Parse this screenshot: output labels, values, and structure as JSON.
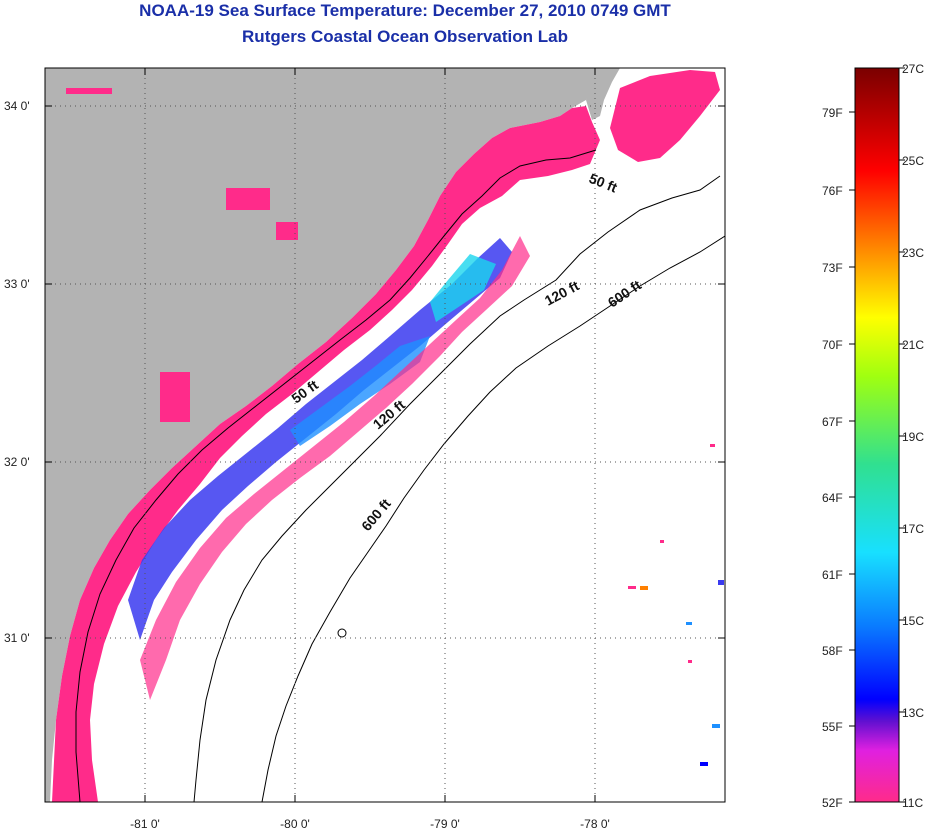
{
  "title": "NOAA-19 Sea Surface Temperature:  December 27, 2010 0749 GMT",
  "subtitle": "Rutgers Coastal Ocean Observation Lab",
  "map": {
    "latitude_labels": [
      "34 0'",
      "33 0'",
      "32 0'",
      "31 0'"
    ],
    "longitude_labels": [
      "-81 0'",
      "-80 0'",
      "-79 0'",
      "-78 0'"
    ],
    "contour_labels": {
      "c50_north": "50 ft",
      "c50_south": "50 ft",
      "c120_north": "120 ft",
      "c120_south": "120 ft",
      "c600_north": "600 ft",
      "c600_south": "600 ft"
    },
    "colors": {
      "land": "#b3b3b3",
      "ocean_nodata": "#ffffff",
      "sst_coldest": "#ff2b8a",
      "grid": "#555555"
    }
  },
  "colorbar": {
    "fahrenheit_labels": [
      "79F",
      "76F",
      "73F",
      "70F",
      "67F",
      "64F",
      "61F",
      "58F",
      "55F",
      "52F"
    ],
    "celsius_labels": [
      "27C",
      "25C",
      "23C",
      "21C",
      "19C",
      "17C",
      "15C",
      "13C",
      "11C"
    ],
    "range_celsius": [
      11,
      27
    ]
  }
}
